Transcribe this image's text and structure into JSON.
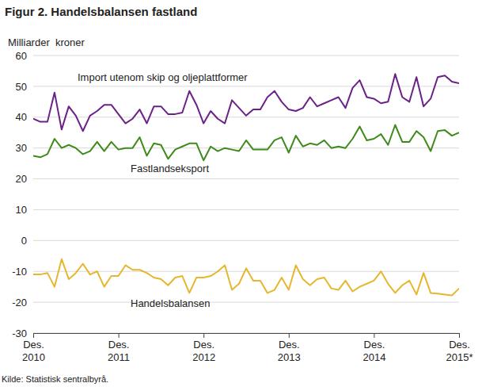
{
  "chart_data": {
    "type": "line",
    "title": "Figur 2. Handelsbalansen fastland",
    "y_label": "Milliarder  kroner",
    "source": "Kilde: Statistisk sentralbyrå.",
    "categories": [
      "Des.\n2010",
      null,
      null,
      null,
      null,
      null,
      null,
      null,
      null,
      null,
      null,
      null,
      "Des.\n2011",
      null,
      null,
      null,
      null,
      null,
      null,
      null,
      null,
      null,
      null,
      null,
      "Des.\n2012",
      null,
      null,
      null,
      null,
      null,
      null,
      null,
      null,
      null,
      null,
      null,
      "Des.\n2013",
      null,
      null,
      null,
      null,
      null,
      null,
      null,
      null,
      null,
      null,
      null,
      "Des.\n2014",
      null,
      null,
      null,
      null,
      null,
      null,
      null,
      null,
      null,
      null,
      null,
      "Des.\n2015*"
    ],
    "series": [
      {
        "name": "Import utenom skip og oljeplattformer",
        "color": "#6b2187",
        "values": [
          39.5,
          38.5,
          38.5,
          48,
          36,
          43.5,
          40.5,
          35.5,
          40.5,
          42,
          44,
          44,
          41,
          38,
          39.5,
          42.5,
          38,
          43.5,
          43.5,
          41,
          41,
          41.5,
          48.5,
          44,
          38,
          42,
          39.5,
          38,
          45.5,
          43,
          40.5,
          42.5,
          42.5,
          46.5,
          48.5,
          45,
          42.5,
          42,
          43,
          46.5,
          43.5,
          44.5,
          45.5,
          46.5,
          43,
          49.5,
          52,
          46.5,
          46,
          44.5,
          45,
          54,
          46.5,
          45,
          53,
          43.5,
          46,
          53,
          53.5,
          51.5,
          51
        ]
      },
      {
        "name": "Fastlandseksport",
        "color": "#3f8a1a",
        "values": [
          27.5,
          27,
          28,
          33,
          30,
          31,
          30,
          28,
          29,
          32,
          29,
          32,
          29.5,
          30,
          30,
          33.5,
          27.5,
          31.5,
          31,
          26.5,
          29.5,
          30.5,
          31.5,
          31.5,
          26,
          30.5,
          29,
          30,
          29.5,
          29,
          32.5,
          29.5,
          29.5,
          29.5,
          32.5,
          33.5,
          28.5,
          34,
          30.5,
          31.5,
          31,
          32.5,
          30,
          30.5,
          30,
          33,
          37,
          32.5,
          33,
          34.5,
          31,
          37.5,
          32,
          32,
          35.5,
          33.5,
          29,
          35.5,
          35.8,
          34,
          35
        ]
      },
      {
        "name": "Handelsbalansen",
        "color": "#e6b72e",
        "values": [
          -11,
          -11,
          -10.5,
          -15,
          -6,
          -12.5,
          -10.5,
          -7.5,
          -11,
          -10,
          -15,
          -11.5,
          -11.5,
          -8,
          -9.5,
          -9.5,
          -10.5,
          -12,
          -12.5,
          -14.5,
          -12,
          -11.5,
          -17,
          -12,
          -12,
          -11.5,
          -10,
          -8,
          -16,
          -14,
          -9,
          -13,
          -13,
          -17,
          -16,
          -12,
          -16,
          -8,
          -12.5,
          -14.5,
          -12.5,
          -12,
          -15.5,
          -16,
          -13,
          -16.5,
          -15,
          -14,
          -13,
          -10,
          -14,
          -17,
          -14.5,
          -13,
          -17.5,
          -10.5,
          -17,
          -17.2,
          -17.5,
          -17.8,
          -15.5
        ]
      }
    ],
    "ylim": [
      -30,
      60
    ],
    "yticks": [
      -30,
      -20,
      -10,
      0,
      10,
      20,
      30,
      40,
      50,
      60
    ],
    "grid": true
  }
}
